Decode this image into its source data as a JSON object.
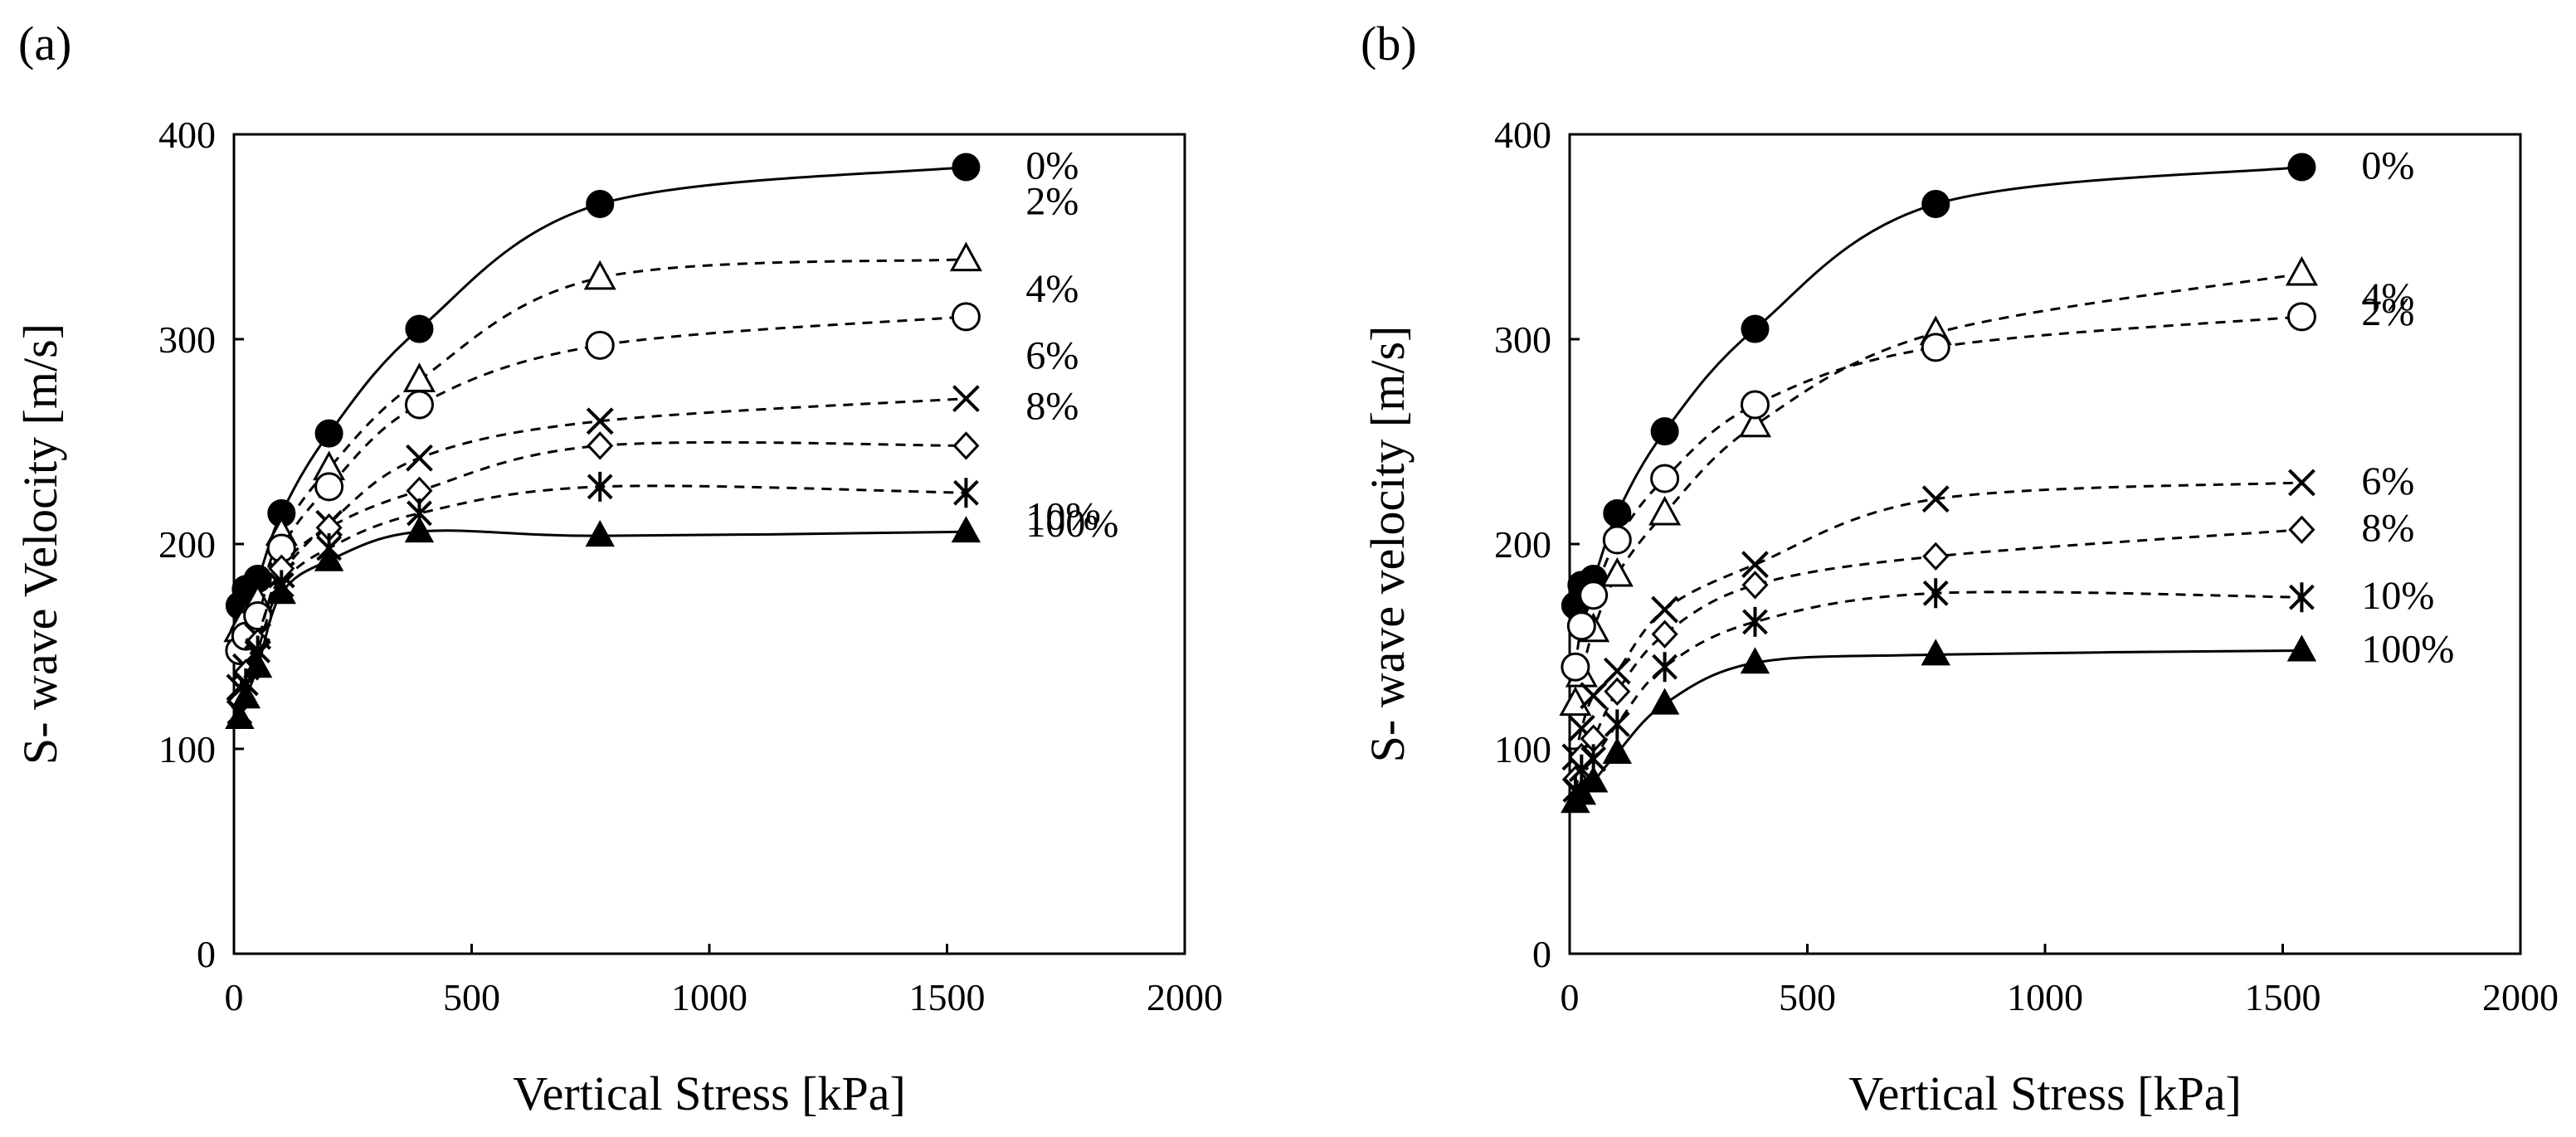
{
  "chart_data": [
    {
      "type": "line",
      "panel_label": "(a)",
      "xlabel": "Vertical Stress [kPa]",
      "ylabel": "S- wave Velocity [m/s]",
      "xlim": [
        0,
        2000
      ],
      "ylim": [
        0,
        400
      ],
      "xticks": [
        0,
        500,
        1000,
        1500,
        2000
      ],
      "yticks": [
        0,
        100,
        200,
        300,
        400
      ],
      "grid": false,
      "legend": "inline labels at right end of each curve",
      "x": [
        12,
        25,
        50,
        100,
        200,
        390,
        770,
        1540
      ],
      "series": [
        {
          "name": "0%",
          "label": "0%",
          "marker": "filled-circle",
          "line": "solid",
          "values": [
            170,
            178,
            183,
            215,
            254,
            305,
            366,
            384
          ]
        },
        {
          "name": "2%",
          "label": "2%",
          "marker": "open-triangle",
          "line": "dashed",
          "values": [
            158,
            164,
            172,
            205,
            237,
            280,
            330,
            339
          ]
        },
        {
          "name": "4%",
          "label": "4%",
          "marker": "open-circle",
          "line": "dashed",
          "values": [
            148,
            155,
            165,
            198,
            228,
            268,
            297,
            311
          ]
        },
        {
          "name": "6%",
          "label": "6%",
          "marker": "x",
          "line": "dashed",
          "values": [
            130,
            140,
            155,
            185,
            210,
            242,
            260,
            271
          ]
        },
        {
          "name": "8%",
          "label": "8%",
          "marker": "open-diamond",
          "line": "dashed",
          "values": [
            123,
            137,
            152,
            188,
            208,
            226,
            248,
            248
          ]
        },
        {
          "name": "10%",
          "label": "10%",
          "marker": "asterisk",
          "line": "dashed",
          "values": [
            118,
            132,
            148,
            180,
            198,
            215,
            228,
            225
          ]
        },
        {
          "name": "100%",
          "label": "100%",
          "marker": "filled-triangle",
          "line": "solid",
          "values": [
            115,
            125,
            140,
            176,
            192,
            206,
            204,
            206
          ]
        }
      ]
    },
    {
      "type": "line",
      "panel_label": "(b)",
      "xlabel": "Vertical Stress [kPa]",
      "ylabel": "S- wave velocity [m/s]",
      "xlim": [
        0,
        2000
      ],
      "ylim": [
        0,
        400
      ],
      "xticks": [
        0,
        500,
        1000,
        1500,
        2000
      ],
      "yticks": [
        0,
        100,
        200,
        300,
        400
      ],
      "grid": false,
      "legend": "inline labels at right end of each curve",
      "x": [
        12,
        25,
        50,
        100,
        200,
        390,
        770,
        1540
      ],
      "series": [
        {
          "name": "0%",
          "label": "0%",
          "marker": "filled-circle",
          "line": "solid",
          "values": [
            170,
            180,
            183,
            215,
            255,
            305,
            366,
            384
          ]
        },
        {
          "name": "2%",
          "label": "2%",
          "marker": "open-triangle",
          "line": "dashed",
          "values": [
            122,
            136,
            158,
            185,
            215,
            258,
            303,
            332
          ]
        },
        {
          "name": "4%",
          "label": "4%",
          "marker": "open-circle",
          "line": "dashed",
          "values": [
            140,
            160,
            175,
            202,
            232,
            268,
            296,
            311
          ]
        },
        {
          "name": "6%",
          "label": "6%",
          "marker": "x",
          "line": "dashed",
          "values": [
            96,
            110,
            126,
            138,
            168,
            190,
            222,
            230
          ]
        },
        {
          "name": "8%",
          "label": "8%",
          "marker": "open-diamond",
          "line": "dashed",
          "values": [
            85,
            96,
            105,
            128,
            156,
            180,
            194,
            207
          ]
        },
        {
          "name": "10%",
          "label": "10%",
          "marker": "asterisk",
          "line": "dashed",
          "values": [
            80,
            90,
            95,
            112,
            140,
            162,
            176,
            174
          ]
        },
        {
          "name": "100%",
          "label": "100%",
          "marker": "filled-triangle",
          "line": "solid",
          "values": [
            74,
            78,
            84,
            98,
            122,
            142,
            146,
            148
          ]
        }
      ]
    }
  ]
}
